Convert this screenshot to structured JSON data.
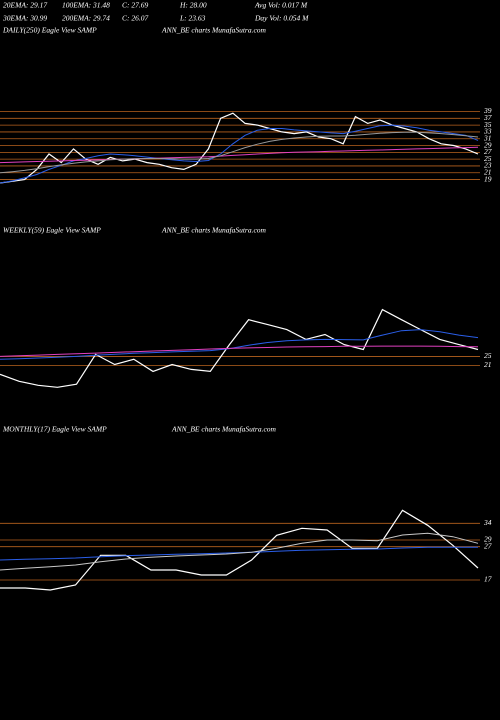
{
  "header": [
    "20EMA: 29.17",
    "100EMA: 31.48",
    "C: 27.69",
    "H: 28.00",
    "Avg Vol: 0.017  M",
    "30EMA: 30.99",
    "200EMA: 29.74",
    "C: 26.07",
    "L: 23.63",
    "Day Vol: 0.054  M"
  ],
  "chart_data": [
    {
      "type": "line",
      "title": "DAILY(250) Eagle  View  SAMP",
      "subtitle": "ANN_BE charts MunafaSutra.com",
      "ylim": [
        13,
        60
      ],
      "yticks": [
        19,
        21,
        23,
        25,
        27,
        29,
        31,
        33,
        35,
        37,
        39
      ],
      "grid": true,
      "grid_color": "#b8621e",
      "series": [
        {
          "color": "#ffffff",
          "values": [
            18,
            18.5,
            19,
            22,
            26.5,
            24,
            28,
            25,
            23.5,
            25.5,
            24.5,
            25,
            24,
            23.5,
            22.5,
            22,
            23.5,
            28,
            37,
            38.5,
            35.5,
            35,
            34,
            33,
            32.5,
            33,
            31.5,
            31,
            29.5,
            37.5,
            35.5,
            36.5,
            35,
            34,
            33,
            31,
            29.5,
            29,
            28,
            26.5
          ]
        },
        {
          "color": "#2a5ee8",
          "values": [
            18,
            18.6,
            19.5,
            20.5,
            22,
            23.2,
            24.5,
            25.2,
            26,
            26.5,
            26.3,
            26,
            25.6,
            25.2,
            24.8,
            24.5,
            24.3,
            24.6,
            26.5,
            29.5,
            32,
            33.5,
            34,
            34,
            33.6,
            33.3,
            33,
            32.7,
            32.5,
            33.2,
            34,
            34.8,
            35,
            34.7,
            34.2,
            33.5,
            33,
            32.5,
            32,
            30.5
          ]
        },
        {
          "color": "#e040c0",
          "values": [
            24,
            24.1,
            24.2,
            24.3,
            24.4,
            24.5,
            24.6,
            24.7,
            24.8,
            24.9,
            25,
            25.1,
            25.2,
            25.3,
            25.4,
            25.5,
            25.6,
            25.7,
            25.9,
            26.1,
            26.3,
            26.5,
            26.7,
            26.9,
            27,
            27.1,
            27.2,
            27.3,
            27.4,
            27.5,
            27.6,
            27.7,
            27.8,
            27.9,
            28,
            28.1,
            28.2,
            28.3,
            28.4,
            28.5
          ]
        },
        {
          "color": "#9a9a9a",
          "values": [
            21,
            21.3,
            21.7,
            22.2,
            22.8,
            23.3,
            23.8,
            24.2,
            24.5,
            24.8,
            25,
            25.1,
            25.2,
            25.2,
            25.1,
            25,
            25,
            25.2,
            26,
            27.2,
            28.4,
            29.4,
            30.2,
            30.8,
            31.2,
            31.5,
            31.7,
            31.8,
            31.8,
            32,
            32.3,
            32.6,
            32.8,
            32.9,
            32.9,
            32.7,
            32.5,
            32.2,
            31.9,
            31.5
          ]
        }
      ]
    },
    {
      "type": "line",
      "title": "WEEKLY(59) Eagle  View  SAMP",
      "subtitle": "ANN_BE charts MunafaSutra.com",
      "ylim": [
        10,
        77
      ],
      "yticks": [
        21,
        25
      ],
      "grid": true,
      "grid_color": "#b8621e",
      "series": [
        {
          "color": "#ffffff",
          "values": [
            17,
            13.9,
            12.1,
            11.2,
            12.6,
            25.9,
            21.4,
            23.7,
            18.3,
            21.4,
            19.2,
            18.3,
            30.3,
            41.4,
            39.2,
            37,
            32.6,
            34.8,
            30.3,
            28.1,
            45.9,
            41.4,
            37,
            32.6,
            30.3,
            28.1
          ]
        },
        {
          "color": "#2a5ee8",
          "values": [
            23.7,
            24,
            24.3,
            24.6,
            25,
            25.5,
            26,
            26.4,
            26.7,
            27,
            27.3,
            27.6,
            28.5,
            30,
            31.2,
            32,
            32.4,
            32.6,
            32.5,
            32.4,
            34.5,
            36.5,
            37,
            36,
            34.5,
            33.4
          ]
        },
        {
          "color": "#e040c0",
          "values": [
            25,
            25.3,
            25.6,
            25.9,
            26.2,
            26.5,
            26.8,
            27.1,
            27.4,
            27.7,
            28,
            28.3,
            28.6,
            28.8,
            29,
            29.2,
            29.3,
            29.4,
            29.5,
            29.5,
            29.6,
            29.6,
            29.6,
            29.5,
            29.4,
            29.3
          ]
        }
      ]
    },
    {
      "type": "line",
      "title": "MONTHLY(17) Eagle  View  SAMP",
      "subtitle": "ANN_BE charts MunafaSutra.com",
      "ylim": [
        11,
        59
      ],
      "yticks": [
        17,
        27,
        29,
        34
      ],
      "grid": true,
      "grid_color": "#b8621e",
      "series": [
        {
          "color": "#ffffff",
          "values": [
            14.6,
            14.6,
            14,
            15.5,
            24.4,
            24.4,
            20,
            20,
            18.5,
            18.5,
            23,
            30.4,
            32.5,
            32,
            26.5,
            26.5,
            37.9,
            33.4,
            27.4,
            20.6
          ]
        },
        {
          "color": "#2a5ee8",
          "values": [
            23,
            23.2,
            23.4,
            23.6,
            24,
            24.3,
            24.5,
            24.7,
            24.9,
            25.1,
            25.3,
            25.6,
            25.9,
            26.1,
            26.2,
            26.3,
            26.6,
            26.8,
            26.8,
            26.8
          ]
        },
        {
          "color": "#c8c8c8",
          "values": [
            20,
            20.5,
            21,
            21.5,
            22.5,
            23.3,
            23.8,
            24.2,
            24.5,
            24.8,
            25.3,
            26.5,
            28,
            29,
            29,
            28.8,
            30.5,
            31,
            30,
            28
          ]
        }
      ]
    }
  ]
}
